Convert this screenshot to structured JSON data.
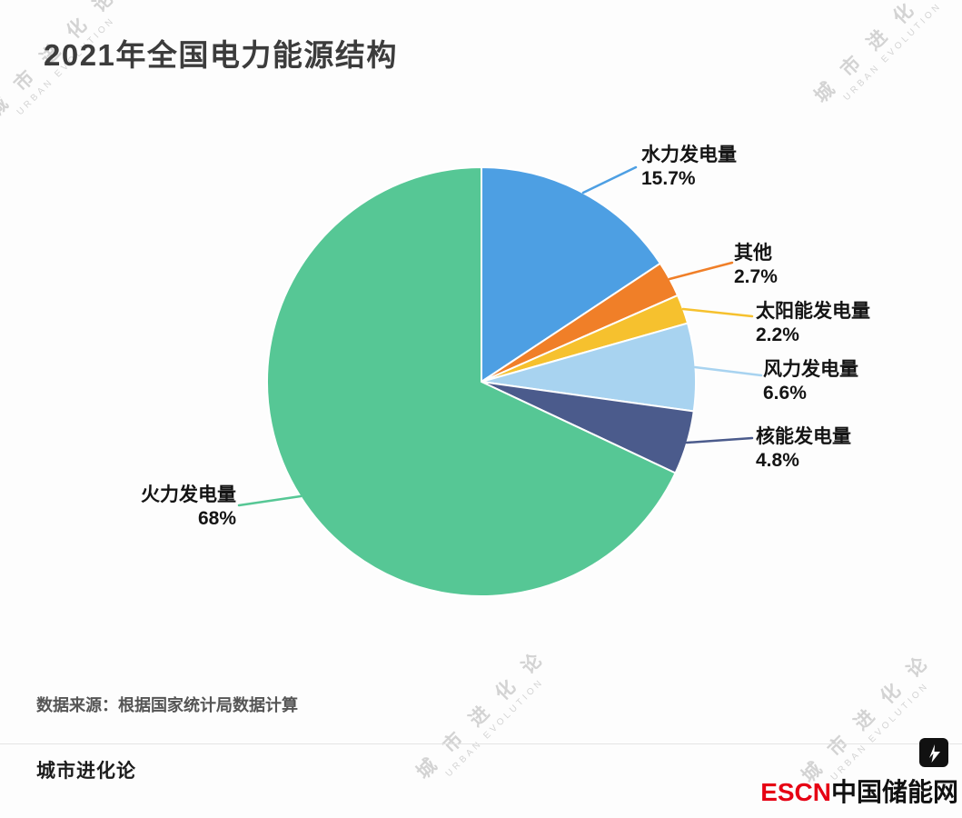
{
  "title": "2021年全国电力能源结构",
  "source": "数据来源：根据国家统计局数据计算",
  "footer_brand": "城市进化论",
  "watermark": {
    "cn": "城 市 进 化 论",
    "en": "URBAN EVOLUTION"
  },
  "logo": {
    "escn": "ESCN",
    "site": "中国储能网",
    "icon": "escn-lightning-mark"
  },
  "chart_data": {
    "type": "pie",
    "title": "2021年全国电力能源结构",
    "unit": "%",
    "start_angle_deg": 0,
    "direction": "clockwise",
    "legend_position": "outside-labels",
    "slices": [
      {
        "label": "水力发电量",
        "value": 15.7,
        "pct_label": "15.7%",
        "color": "#4d9fe3"
      },
      {
        "label": "其他",
        "value": 2.7,
        "pct_label": "2.7%",
        "color": "#f07f28"
      },
      {
        "label": "太阳能发电量",
        "value": 2.2,
        "pct_label": "2.2%",
        "color": "#f6c12e"
      },
      {
        "label": "风力发电量",
        "value": 6.6,
        "pct_label": "6.6%",
        "color": "#a8d3f0"
      },
      {
        "label": "核能发电量",
        "value": 4.8,
        "pct_label": "4.8%",
        "color": "#4b5b8c"
      },
      {
        "label": "火力发电量",
        "value": 68.0,
        "pct_label": "68%",
        "color": "#56c795"
      }
    ]
  }
}
